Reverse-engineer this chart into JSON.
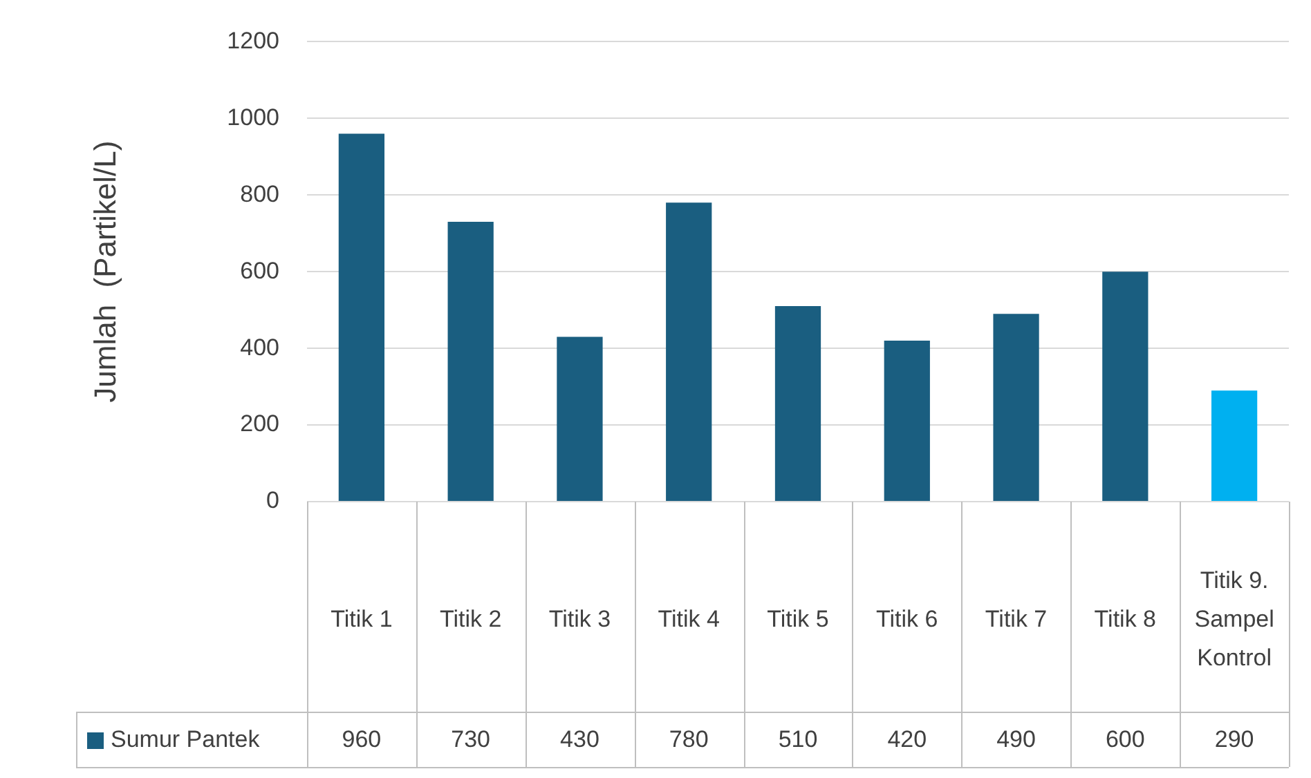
{
  "chart_data": {
    "type": "bar",
    "ylabel": "Jumlah  (Partikel/L)",
    "categories": [
      "Titik 1",
      "Titik 2",
      "Titik 3",
      "Titik 4",
      "Titik 5",
      "Titik 6",
      "Titik 7",
      "Titik 8",
      "Titik 9. Sampel Kontrol"
    ],
    "series": [
      {
        "name": "Sumur Pantek",
        "color": "#1a5e80",
        "colors": [
          "#1a5e80",
          "#1a5e80",
          "#1a5e80",
          "#1a5e80",
          "#1a5e80",
          "#1a5e80",
          "#1a5e80",
          "#1a5e80",
          "#00b0f0"
        ],
        "values": [
          960,
          730,
          430,
          780,
          510,
          420,
          490,
          600,
          290
        ]
      }
    ],
    "ylim": [
      0,
      1200
    ],
    "yticks": [
      0,
      200,
      400,
      600,
      800,
      1000,
      1200
    ],
    "grid": "y",
    "legend": "bottom",
    "data_labels": true
  }
}
